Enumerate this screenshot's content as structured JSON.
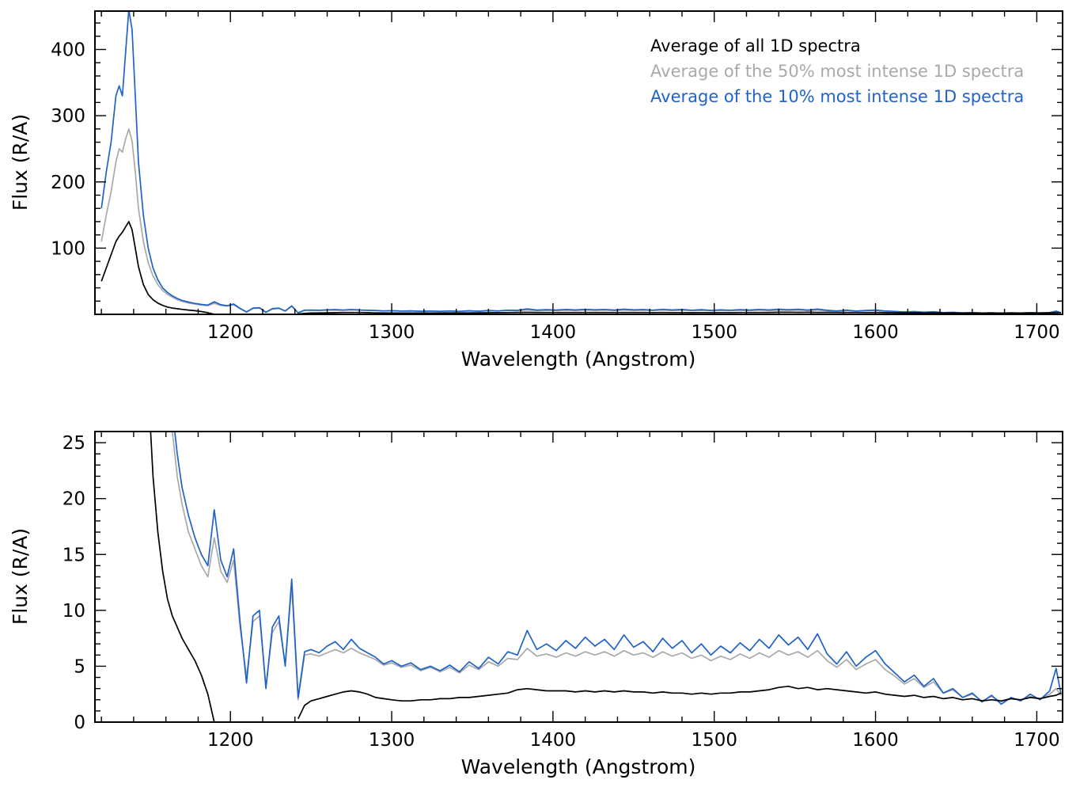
{
  "chart_data": {
    "type": "line",
    "xlabel": "Wavelength (Angstrom)",
    "ylabel": "Flux (R/A)",
    "xlim": [
      1116,
      1716
    ],
    "xticks": [
      1200,
      1300,
      1400,
      1500,
      1600,
      1700
    ],
    "x_minor": 20,
    "panels": [
      {
        "name": "full-scale",
        "ylim": [
          0,
          458
        ],
        "yticks": [
          100,
          200,
          300,
          400
        ],
        "y_minor": 20,
        "legend": true
      },
      {
        "name": "zoomed",
        "ylim": [
          0,
          26
        ],
        "yticks": [
          0,
          5,
          10,
          15,
          20,
          25
        ],
        "y_minor": 1,
        "legend": false
      }
    ],
    "x": [
      1120,
      1123,
      1126,
      1129,
      1131,
      1133,
      1135,
      1137,
      1139,
      1141,
      1143,
      1146,
      1149,
      1152,
      1155,
      1158,
      1161,
      1164,
      1167,
      1170,
      1174,
      1178,
      1182,
      1186,
      1190,
      1194,
      1198,
      1202,
      1206,
      1210,
      1214,
      1218,
      1222,
      1226,
      1230,
      1234,
      1238,
      1242,
      1246,
      1250,
      1255,
      1260,
      1265,
      1270,
      1275,
      1280,
      1285,
      1290,
      1295,
      1300,
      1306,
      1312,
      1318,
      1324,
      1330,
      1336,
      1342,
      1348,
      1354,
      1360,
      1366,
      1372,
      1378,
      1384,
      1390,
      1396,
      1402,
      1408,
      1414,
      1420,
      1426,
      1432,
      1438,
      1444,
      1450,
      1456,
      1462,
      1468,
      1474,
      1480,
      1486,
      1492,
      1498,
      1504,
      1510,
      1516,
      1522,
      1528,
      1534,
      1540,
      1546,
      1552,
      1558,
      1564,
      1570,
      1576,
      1582,
      1588,
      1594,
      1600,
      1606,
      1612,
      1618,
      1624,
      1630,
      1636,
      1642,
      1648,
      1654,
      1660,
      1666,
      1672,
      1678,
      1684,
      1690,
      1696,
      1702,
      1708,
      1712,
      1715
    ],
    "series": [
      {
        "name": "Average of all 1D spectra",
        "color": "#000000",
        "values": [
          50,
          70,
          90,
          110,
          118,
          124,
          132,
          140,
          128,
          100,
          72,
          45,
          30,
          22,
          17,
          13.5,
          11,
          9.5,
          8.5,
          7.5,
          6.5,
          5.5,
          4.2,
          2.5,
          0,
          null,
          null,
          null,
          null,
          null,
          null,
          null,
          null,
          null,
          null,
          null,
          null,
          0.3,
          1.5,
          1.9,
          2.1,
          2.3,
          2.5,
          2.7,
          2.8,
          2.7,
          2.5,
          2.2,
          2.1,
          2.0,
          1.9,
          1.9,
          2.0,
          2.0,
          2.1,
          2.1,
          2.2,
          2.2,
          2.3,
          2.4,
          2.5,
          2.6,
          2.9,
          3.0,
          2.9,
          2.8,
          2.8,
          2.8,
          2.7,
          2.8,
          2.7,
          2.8,
          2.7,
          2.8,
          2.7,
          2.7,
          2.6,
          2.7,
          2.6,
          2.6,
          2.5,
          2.6,
          2.5,
          2.6,
          2.6,
          2.7,
          2.7,
          2.8,
          2.9,
          3.1,
          3.2,
          3.0,
          3.1,
          2.9,
          3.0,
          2.9,
          2.8,
          2.7,
          2.6,
          2.7,
          2.5,
          2.4,
          2.3,
          2.4,
          2.2,
          2.3,
          2.1,
          2.2,
          2.0,
          2.1,
          1.9,
          2.0,
          1.9,
          2.1,
          2.0,
          2.2,
          2.1,
          2.3,
          2.4,
          2.6
        ]
      },
      {
        "name": "Average of the 50% most intense 1D spectra",
        "color": "#a9a9a9",
        "values": [
          110,
          150,
          185,
          230,
          250,
          245,
          265,
          280,
          262,
          215,
          160,
          110,
          78,
          58,
          45,
          36,
          30,
          26,
          22,
          19.5,
          17,
          15.5,
          14,
          13,
          16.5,
          13.5,
          12.5,
          14.5,
          8.5,
          4.0,
          9.0,
          9.5,
          3.2,
          8.0,
          9.0,
          5.2,
          12.2,
          2.0,
          6.0,
          6.1,
          5.9,
          6.2,
          6.5,
          6.2,
          6.6,
          6.2,
          5.9,
          5.6,
          5.1,
          5.3,
          4.9,
          5.1,
          4.6,
          4.9,
          4.5,
          4.9,
          4.4,
          5.1,
          4.7,
          5.4,
          5.0,
          5.7,
          5.6,
          6.6,
          5.9,
          6.1,
          5.8,
          6.2,
          5.9,
          6.3,
          6.0,
          6.3,
          5.9,
          6.4,
          6.0,
          6.2,
          5.8,
          6.3,
          5.9,
          6.2,
          5.7,
          6.0,
          5.5,
          5.9,
          5.6,
          6.1,
          5.7,
          6.2,
          5.8,
          6.4,
          6.0,
          6.3,
          5.8,
          6.4,
          5.5,
          4.9,
          5.6,
          4.7,
          5.2,
          5.6,
          4.7,
          4.1,
          3.4,
          3.9,
          3.1,
          3.6,
          2.6,
          2.9,
          2.2,
          2.5,
          1.9,
          2.3,
          1.8,
          2.1,
          2.0,
          2.3,
          2.1,
          2.5,
          3.0,
          2.4
        ]
      },
      {
        "name": "Average of the 10% most intense 1D spectra",
        "color": "#1f63c8",
        "values": [
          160,
          215,
          260,
          330,
          345,
          330,
          395,
          460,
          430,
          330,
          230,
          150,
          100,
          70,
          52,
          40,
          33,
          28,
          24,
          21,
          18.5,
          16.5,
          15,
          14,
          19,
          14.5,
          13,
          15.5,
          9,
          3.5,
          9.5,
          10,
          3,
          8.5,
          9.5,
          5,
          12.8,
          2.2,
          6.3,
          6.5,
          6.2,
          6.8,
          7.2,
          6.5,
          7.4,
          6.6,
          6.2,
          5.8,
          5.2,
          5.5,
          5.0,
          5.3,
          4.7,
          5.0,
          4.6,
          5.1,
          4.5,
          5.4,
          4.8,
          5.8,
          5.2,
          6.3,
          6.0,
          8.2,
          6.5,
          7.0,
          6.4,
          7.3,
          6.6,
          7.6,
          6.8,
          7.4,
          6.5,
          7.8,
          6.7,
          7.2,
          6.3,
          7.5,
          6.6,
          7.3,
          6.2,
          7.0,
          6.0,
          6.8,
          6.2,
          7.1,
          6.4,
          7.4,
          6.6,
          7.8,
          6.9,
          7.6,
          6.5,
          7.9,
          6.1,
          5.2,
          6.3,
          5.0,
          5.8,
          6.4,
          5.2,
          4.4,
          3.6,
          4.2,
          3.2,
          3.9,
          2.6,
          3.0,
          2.2,
          2.6,
          1.8,
          2.4,
          1.6,
          2.2,
          1.9,
          2.5,
          2.0,
          2.8,
          4.8,
          2.5
        ]
      }
    ]
  }
}
